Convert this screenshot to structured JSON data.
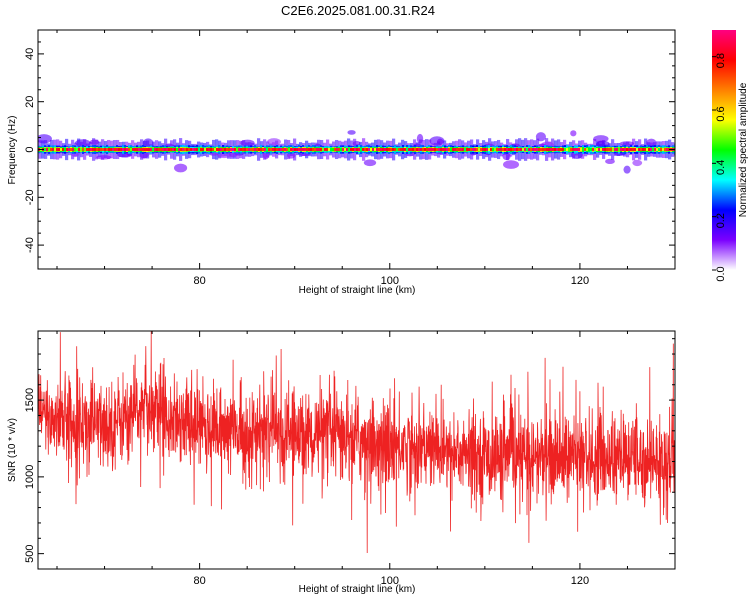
{
  "title": "C2E6.2025.081.00.31.R24",
  "chart_data": [
    {
      "type": "heatmap",
      "title": "C2E6.2025.081.00.31.R24",
      "xlabel": "Height of straight line (km)",
      "ylabel": "Frequency (Hz)",
      "xlim": [
        63,
        130
      ],
      "ylim": [
        -50,
        50
      ],
      "x_ticks": [
        80,
        100,
        120
      ],
      "y_ticks": [
        -40,
        -20,
        0,
        20,
        40
      ],
      "band": {
        "center_hz": 0,
        "core_halfwidth_hz": 0.6,
        "halo_halfwidth_hz": 3,
        "peak_amplitude": 0.9,
        "halo_amplitude": 0.2
      },
      "colorbar": {
        "label": "Normalized spectral amplitude",
        "range": [
          0,
          0.9
        ],
        "ticks": [
          0,
          0.2,
          0.4,
          0.6,
          0.8
        ],
        "tick_labels": [
          "0.0",
          "0.2",
          "0.4",
          "0.6",
          "0.8"
        ],
        "colormap": [
          "#ffffff",
          "#7b00ff",
          "#0000ff",
          "#00ffff",
          "#00ff00",
          "#ffff00",
          "#ff8000",
          "#ff0000",
          "#ff0080"
        ]
      },
      "grid": false
    },
    {
      "type": "line",
      "xlabel": "Height of straight line (km)",
      "ylabel": "SNR (10 * v/v)",
      "xlim": [
        63,
        130
      ],
      "ylim": [
        400,
        1950
      ],
      "x_ticks": [
        80,
        100,
        120
      ],
      "y_ticks": [
        500,
        1000,
        1500
      ],
      "color": "#ee2222",
      "trend": {
        "x": [
          63,
          70,
          75,
          80,
          85,
          90,
          95,
          100,
          105,
          110,
          115,
          120,
          125,
          130
        ],
        "y": [
          1400,
          1330,
          1460,
          1330,
          1280,
          1280,
          1260,
          1210,
          1180,
          1130,
          1130,
          1130,
          1120,
          1110
        ]
      },
      "grid": false
    }
  ]
}
